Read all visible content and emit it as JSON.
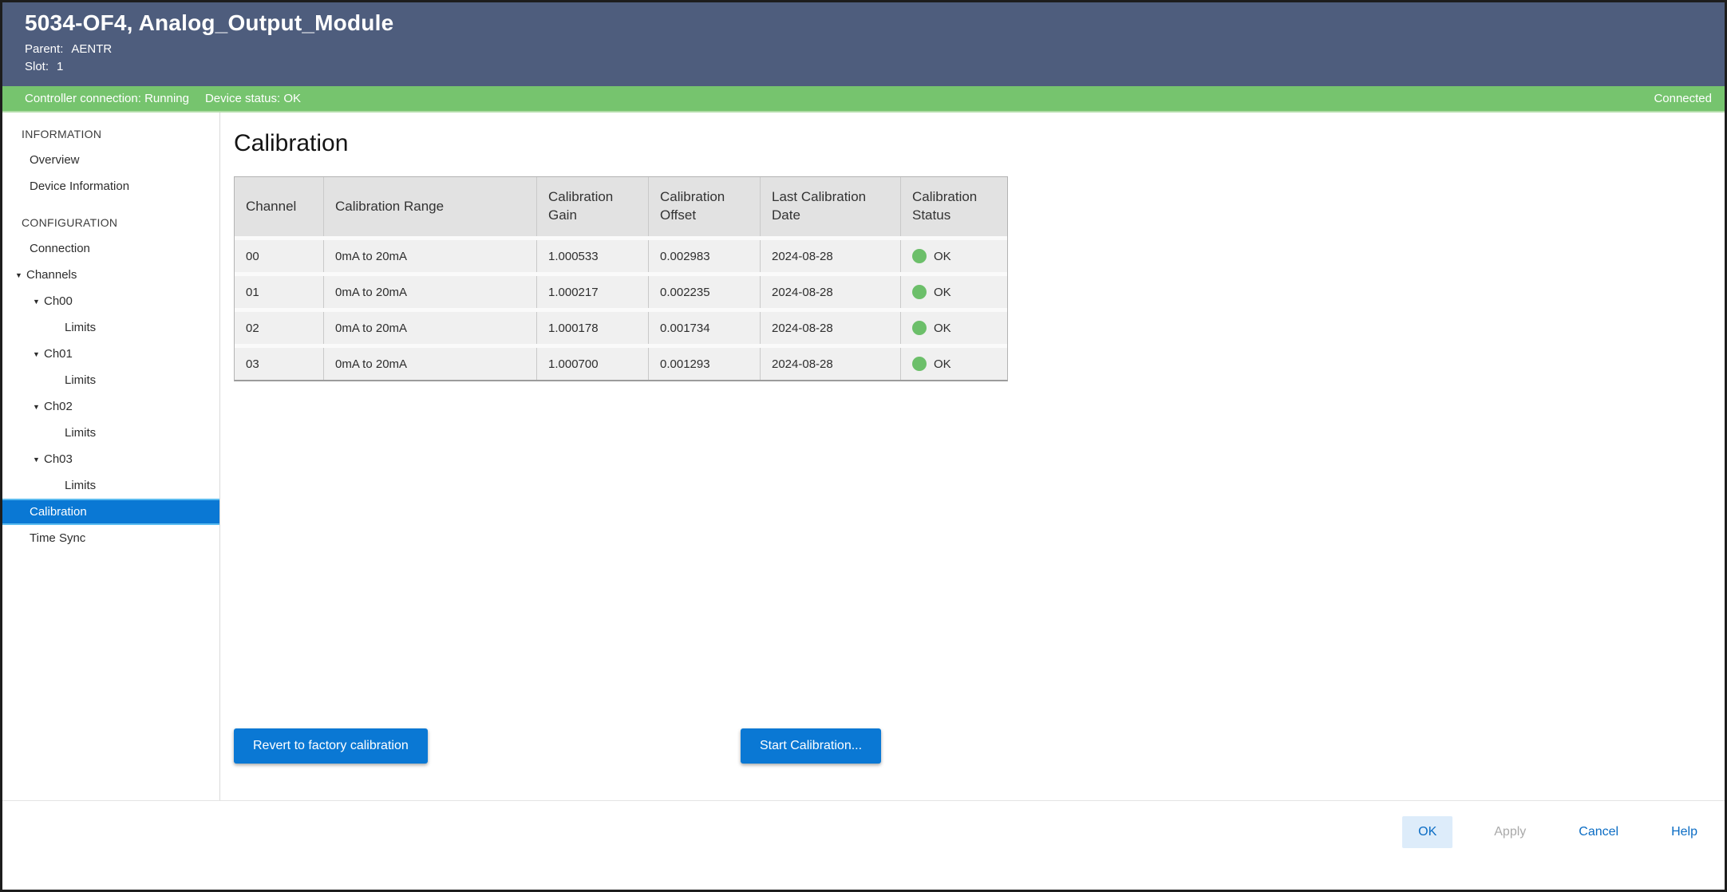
{
  "colors": {
    "header_bg": "#4e5d7d",
    "status_bar_green": "#76c46e",
    "accent_blue": "#0a78d4",
    "link_blue": "#0a6cc4",
    "status_ok_dot_green": "#6cbf6a",
    "table_header_bg": "#e2e2e2",
    "table_row_bg": "#f0f0f0",
    "disabled_gray": "#a9a9a9"
  },
  "header": {
    "title": "5034-OF4, Analog_Output_Module",
    "parent_label": "Parent:",
    "parent_value": "AENTR",
    "slot_label": "Slot:",
    "slot_value": "1"
  },
  "status_bar": {
    "controller_connection": "Controller connection: Running",
    "device_status": "Device status: OK",
    "connection_state": "Connected"
  },
  "icons": {
    "collapse_arrow": "▼"
  },
  "sidebar": {
    "items": [
      {
        "label": "INFORMATION"
      },
      {
        "label": "Overview"
      },
      {
        "label": "Device Information"
      },
      {
        "label": "CONFIGURATION"
      },
      {
        "label": "Connection"
      },
      {
        "label": "Channels"
      },
      {
        "label": "Ch00"
      },
      {
        "label": "Limits"
      },
      {
        "label": "Ch01"
      },
      {
        "label": "Limits"
      },
      {
        "label": "Ch02"
      },
      {
        "label": "Limits"
      },
      {
        "label": "Ch03"
      },
      {
        "label": "Limits"
      },
      {
        "label": "Calibration"
      },
      {
        "label": "Time Sync"
      }
    ]
  },
  "page": {
    "title": "Calibration"
  },
  "table": {
    "columns": [
      "Channel",
      "Calibration Range",
      "Calibration Gain",
      "Calibration Offset",
      "Last Calibration Date",
      "Calibration Status"
    ],
    "rows": [
      {
        "channel": "00",
        "range": "0mA to 20mA",
        "gain": "1.000533",
        "offset": "0.002983",
        "date": "2024-08-28",
        "status": "OK"
      },
      {
        "channel": "01",
        "range": "0mA to 20mA",
        "gain": "1.000217",
        "offset": "0.002235",
        "date": "2024-08-28",
        "status": "OK"
      },
      {
        "channel": "02",
        "range": "0mA to 20mA",
        "gain": "1.000178",
        "offset": "0.001734",
        "date": "2024-08-28",
        "status": "OK"
      },
      {
        "channel": "03",
        "range": "0mA to 20mA",
        "gain": "1.000700",
        "offset": "0.001293",
        "date": "2024-08-28",
        "status": "OK"
      }
    ]
  },
  "actions": {
    "revert": "Revert to factory calibration",
    "start": "Start Calibration..."
  },
  "footer": {
    "ok": "OK",
    "apply": "Apply",
    "cancel": "Cancel",
    "help": "Help"
  }
}
